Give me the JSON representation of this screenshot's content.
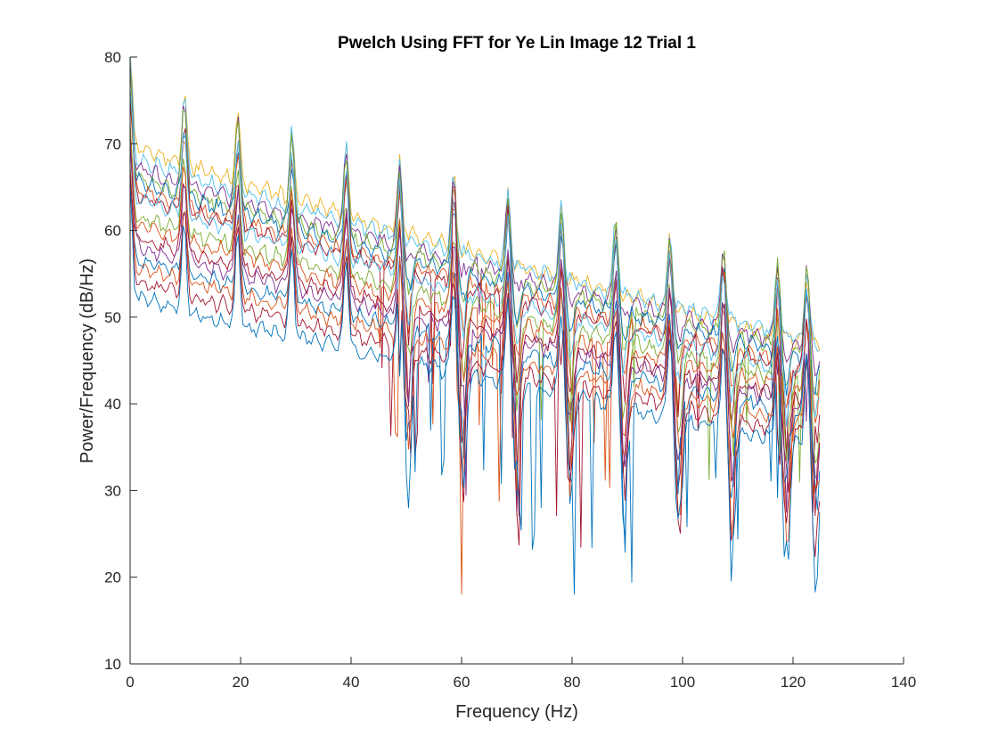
{
  "chart_data": {
    "type": "line",
    "title": "Pwelch Using FFT for Ye Lin Image 12 Trial 1",
    "xlabel": "Frequency (Hz)",
    "ylabel": "Power/Frequency (dB/Hz)",
    "xlim": [
      0,
      140
    ],
    "ylim": [
      10,
      80
    ],
    "xticks": [
      0,
      20,
      40,
      60,
      80,
      100,
      120,
      140
    ],
    "yticks": [
      10,
      20,
      30,
      40,
      50,
      60,
      70,
      80
    ],
    "x_range": [
      0,
      125
    ],
    "grid": false,
    "legend": "none",
    "mains_peaks_hz": [
      0,
      9.8,
      19.5,
      29.3,
      39.1,
      48.8,
      58.6,
      68.4,
      78.1,
      87.9,
      97.7,
      107.4,
      117.2,
      122.5
    ],
    "series": [
      {
        "color": "#EDB120",
        "start_db": 70.0,
        "end_db": 46.5,
        "notch_depth_db": 0
      },
      {
        "color": "#4DBEEE",
        "start_db": 68.5,
        "end_db": 47.0,
        "notch_depth_db": 0
      },
      {
        "color": "#7E2F8E",
        "start_db": 67.5,
        "end_db": 46.0,
        "notch_depth_db": 2
      },
      {
        "color": "#77AC30",
        "start_db": 66.5,
        "end_db": 45.5,
        "notch_depth_db": 4
      },
      {
        "color": "#0072BD",
        "start_db": 66.0,
        "end_db": 45.0,
        "notch_depth_db": 3
      },
      {
        "color": "#D95319",
        "start_db": 65.0,
        "end_db": 44.0,
        "notch_depth_db": 6
      },
      {
        "color": "#A2142F",
        "start_db": 64.5,
        "end_db": 43.5,
        "notch_depth_db": 8
      },
      {
        "color": "#4DBEEE",
        "start_db": 64.0,
        "end_db": 43.0,
        "notch_depth_db": 5
      },
      {
        "color": "#77AC30",
        "start_db": 62.0,
        "end_db": 42.0,
        "notch_depth_db": 9
      },
      {
        "color": "#D95319",
        "start_db": 61.0,
        "end_db": 41.0,
        "notch_depth_db": 10
      },
      {
        "color": "#A2142F",
        "start_db": 59.5,
        "end_db": 40.0,
        "notch_depth_db": 11
      },
      {
        "color": "#7E2F8E",
        "start_db": 58.5,
        "end_db": 39.5,
        "notch_depth_db": 9
      },
      {
        "color": "#0072BD",
        "start_db": 57.0,
        "end_db": 38.5,
        "notch_depth_db": 12
      },
      {
        "color": "#D95319",
        "start_db": 56.0,
        "end_db": 37.5,
        "notch_depth_db": 12
      },
      {
        "color": "#A2142F",
        "start_db": 54.5,
        "end_db": 36.0,
        "notch_depth_db": 13
      },
      {
        "color": "#0072BD",
        "start_db": 52.5,
        "end_db": 35.0,
        "notch_depth_db": 14
      }
    ]
  }
}
